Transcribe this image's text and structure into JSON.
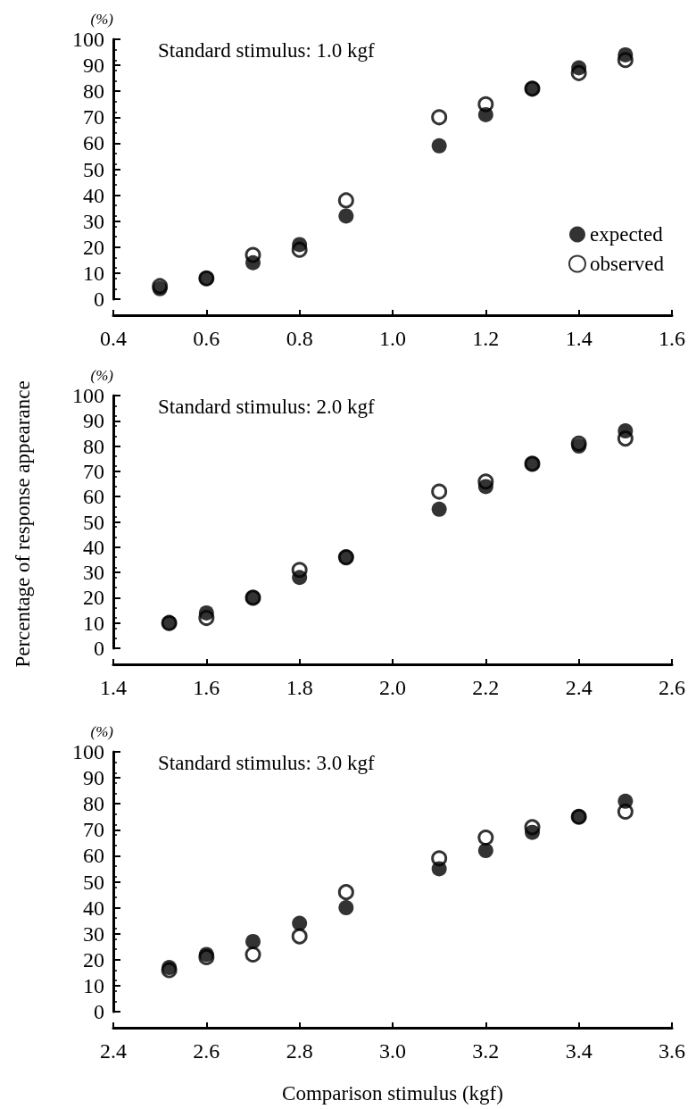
{
  "chart_data": [
    {
      "type": "scatter",
      "title": "Standard stimulus: 1.0 kgf",
      "ylabel": "(%)",
      "legend": "right",
      "grid": false,
      "xlim": [
        0.4,
        1.6
      ],
      "xticks": [
        0.4,
        0.6,
        0.8,
        {
          "value": 1.0,
          "label": "1.0"
        },
        1.2,
        1.4,
        1.6
      ],
      "ylim": [
        0,
        100
      ],
      "yticks": [
        0,
        10,
        20,
        30,
        40,
        50,
        60,
        70,
        80,
        90,
        100
      ],
      "series": [
        {
          "name": "expected",
          "color": "#000000",
          "marker": "circle",
          "x": [
            0.5,
            0.6,
            0.7,
            0.8,
            0.9,
            1.1,
            1.2,
            1.3,
            1.4,
            1.5
          ],
          "values": [
            4,
            8,
            14,
            21,
            32,
            59,
            71,
            81,
            89,
            94
          ]
        },
        {
          "name": "observed",
          "color": "#000000",
          "marker": "circle-open",
          "x": [
            0.5,
            0.6,
            0.7,
            0.8,
            0.9,
            1.1,
            1.2,
            1.3,
            1.4,
            1.5
          ],
          "values": [
            5,
            8,
            17,
            19,
            38,
            70,
            75,
            81,
            87,
            92
          ]
        }
      ]
    },
    {
      "type": "scatter",
      "title": "Standard stimulus: 2.0 kgf",
      "ylabel": "(%)",
      "grid": false,
      "annotations": [
        "Percentage of response appearance"
      ],
      "xlim": [
        1.4,
        2.6
      ],
      "xticks": [
        1.4,
        1.6,
        1.8,
        {
          "value": 2.0,
          "label": "2.0"
        },
        2.2,
        2.4,
        2.6
      ],
      "ylim": [
        0,
        100
      ],
      "yticks": [
        0,
        10,
        20,
        30,
        40,
        50,
        60,
        70,
        80,
        90,
        100
      ],
      "series": [
        {
          "color": "#000000",
          "marker": "circle",
          "x": [
            1.52,
            1.6,
            1.7,
            1.8,
            1.9,
            2.1,
            2.2,
            2.3,
            2.4,
            2.5
          ],
          "values": [
            10,
            14,
            20,
            28,
            36,
            55,
            64,
            73,
            80,
            86
          ]
        },
        {
          "color": "#000000",
          "marker": "circle-open",
          "x": [
            1.52,
            1.6,
            1.7,
            1.8,
            1.9,
            2.1,
            2.2,
            2.3,
            2.4,
            2.5
          ],
          "values": [
            10,
            12,
            20,
            31,
            36,
            62,
            66,
            73,
            81,
            83
          ]
        }
      ]
    },
    {
      "type": "scatter",
      "title": "Standard stimulus: 3.0 kgf",
      "ylabel": "(%)",
      "xlabel": "Comparison stimulus (kgf)",
      "grid": false,
      "xlim": [
        2.4,
        3.6
      ],
      "xticks": [
        2.4,
        2.6,
        2.8,
        {
          "value": 3.0,
          "label": "3.0"
        },
        3.2,
        3.4,
        3.6
      ],
      "ylim": [
        0,
        100
      ],
      "yticks": [
        0,
        10,
        20,
        30,
        40,
        50,
        60,
        70,
        80,
        90,
        100
      ],
      "series": [
        {
          "color": "#000000",
          "marker": "circle",
          "x": [
            2.52,
            2.6,
            2.7,
            2.8,
            2.9,
            3.1,
            3.2,
            3.3,
            3.4,
            3.5
          ],
          "values": [
            17,
            22,
            27,
            34,
            40,
            55,
            62,
            69,
            75,
            81
          ]
        },
        {
          "color": "#000000",
          "marker": "circle-open",
          "x": [
            2.52,
            2.6,
            2.7,
            2.8,
            2.9,
            3.1,
            3.2,
            3.3,
            3.4,
            3.5
          ],
          "values": [
            16,
            21,
            22,
            29,
            46,
            59,
            67,
            71,
            75,
            77
          ]
        }
      ]
    }
  ]
}
